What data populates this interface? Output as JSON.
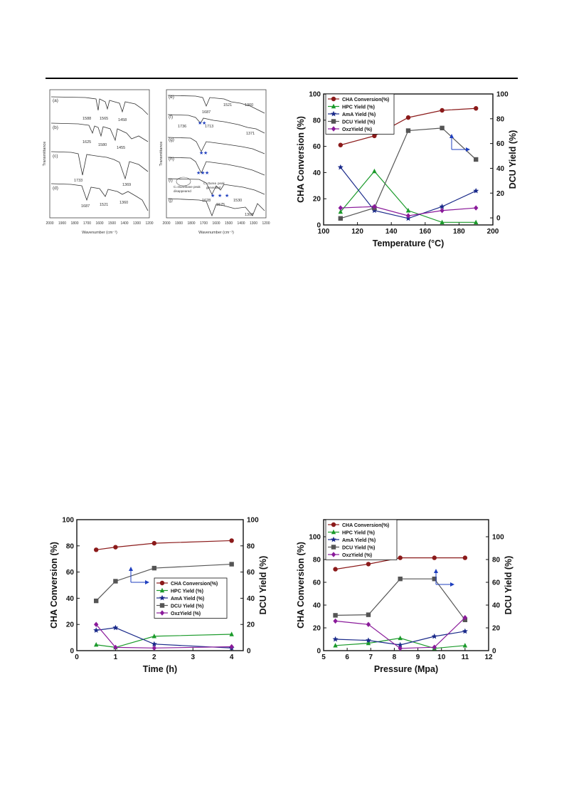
{
  "chart_data": [
    {
      "type": "line",
      "subtype": "ftir-spectra",
      "xlabel": "Wavenumber (cm⁻¹)",
      "ylabel": "Transmittance",
      "xlim": [
        2000,
        1200
      ],
      "xticks": [
        "2000",
        "1900",
        "1800",
        "1700",
        "1600",
        "1500",
        "1400",
        "1300",
        "1200"
      ],
      "spectra": [
        {
          "name": "(a)",
          "annotations": [
            "1588",
            "1565",
            "1458"
          ]
        },
        {
          "name": "(b)",
          "annotations": [
            "1625",
            "1580",
            "1455"
          ]
        },
        {
          "name": "(c)",
          "annotations": [
            "1733",
            "1369"
          ]
        },
        {
          "name": "(d)",
          "annotations": [
            "1687",
            "1521",
            "1360"
          ]
        }
      ]
    },
    {
      "type": "line",
      "subtype": "ftir-spectra",
      "xlabel": "Wavenumber (cm⁻¹)",
      "ylabel": "Transmittance",
      "xlim": [
        2000,
        1200
      ],
      "xticks": [
        "2000",
        "1900",
        "1800",
        "1700",
        "1600",
        "1500",
        "1400",
        "1300",
        "1200"
      ],
      "spectra": [
        {
          "name": "(e)",
          "annotations": [
            "1687",
            "1521",
            "1360"
          ]
        },
        {
          "name": "(f)",
          "annotations": [
            "1736",
            "1713",
            "1371"
          ]
        },
        {
          "name": "(g)",
          "annotations": []
        },
        {
          "name": "(h)",
          "annotations": []
        },
        {
          "name": "(i)",
          "annotations": [
            "1628",
            "1575",
            "1530"
          ]
        },
        {
          "name": "(j)",
          "annotations": [
            "1308"
          ]
        }
      ],
      "notes": [
        "C=O",
        "urethane peak",
        "disappeared",
        "C=O",
        "urea",
        "peak",
        "generated"
      ]
    },
    {
      "type": "line",
      "xlabel": "Temperature (°C)",
      "ylabel": "CHA Conversion (%)",
      "y2label": "DCU Yield (%)",
      "x": [
        110,
        130,
        150,
        170,
        190
      ],
      "xlim": [
        100,
        200
      ],
      "ylim": [
        0,
        100
      ],
      "y2lim": [
        -5.7,
        100
      ],
      "xticks": [
        100,
        120,
        140,
        160,
        180,
        200
      ],
      "yticks": [
        0,
        20,
        40,
        60,
        80,
        100
      ],
      "y2ticks": [
        0,
        20,
        40,
        60,
        80,
        100
      ],
      "legend_position": "top-left",
      "series": [
        {
          "name": "CHA Conversion(%)",
          "values": [
            61,
            68,
            82,
            87.5,
            89
          ],
          "color": "#8b1a1a",
          "marker": "circle"
        },
        {
          "name": "HPC Yield (%)",
          "values": [
            10,
            41,
            11,
            2,
            2
          ],
          "color": "#1a9a2a",
          "marker": "triangle"
        },
        {
          "name": "AmA Yield (%)",
          "values": [
            44,
            11,
            5,
            14,
            26
          ],
          "color": "#1a2a8a",
          "marker": "star"
        },
        {
          "name": "DCU Yield (%)",
          "values": [
            5,
            13,
            72,
            74,
            50
          ],
          "color": "#555555",
          "marker": "square"
        },
        {
          "name": "OxzYield (%)",
          "values": [
            13,
            14,
            7,
            11,
            13
          ],
          "color": "#8a1a9a",
          "marker": "diamond"
        }
      ]
    },
    {
      "type": "line",
      "xlabel": "Time (h)",
      "ylabel": "CHA Conversion (%)",
      "y2label": "DCU Yield (%)",
      "x": [
        0.5,
        1,
        2,
        4
      ],
      "xlim": [
        0,
        4.3
      ],
      "ylim": [
        0,
        100
      ],
      "y2lim": [
        0,
        100
      ],
      "xticks": [
        0,
        1,
        2,
        3,
        4
      ],
      "yticks": [
        0,
        20,
        40,
        60,
        80,
        100
      ],
      "y2ticks": [
        0,
        20,
        40,
        60,
        80,
        100
      ],
      "legend_position": "center-right",
      "series": [
        {
          "name": "CHA Conversion(%)",
          "values": [
            77,
            79,
            82,
            84
          ],
          "color": "#8b1a1a",
          "marker": "circle"
        },
        {
          "name": "HPC Yield (%)",
          "values": [
            4.5,
            2.5,
            11,
            12.5
          ],
          "color": "#1a9a2a",
          "marker": "triangle"
        },
        {
          "name": "AmA Yield (%)",
          "values": [
            15.5,
            17.5,
            5,
            2
          ],
          "color": "#1a2a8a",
          "marker": "star"
        },
        {
          "name": "DCU Yield (%)",
          "values": [
            38,
            53,
            63,
            66
          ],
          "color": "#555555",
          "marker": "square"
        },
        {
          "name": "OxzYield (%)",
          "values": [
            20,
            2.5,
            2,
            3
          ],
          "color": "#8a1a9a",
          "marker": "diamond"
        }
      ]
    },
    {
      "type": "line",
      "xlabel": "Pressure (Mpa)",
      "ylabel": "CHA Conversion (%)",
      "y2label": "DCU Yield (%)",
      "x": [
        5.5,
        6.9,
        8.25,
        9.7,
        11
      ],
      "xlim": [
        5,
        12
      ],
      "ylim": [
        0,
        115
      ],
      "y2lim": [
        0,
        115
      ],
      "xticks": [
        5,
        6,
        7,
        8,
        9,
        10,
        11,
        12
      ],
      "yticks": [
        0,
        20,
        40,
        60,
        80,
        100
      ],
      "y2ticks": [
        0,
        20,
        40,
        60,
        80,
        100
      ],
      "legend_position": "top-left",
      "series": [
        {
          "name": "CHA Conversion(%)",
          "values": [
            71.5,
            76,
            81.5,
            81.5,
            81.5
          ],
          "color": "#8b1a1a",
          "marker": "circle"
        },
        {
          "name": "HPC Yield (%)",
          "values": [
            4.5,
            6.5,
            11,
            2,
            4.5
          ],
          "color": "#1a9a2a",
          "marker": "triangle"
        },
        {
          "name": "AmA Yield (%)",
          "values": [
            10,
            9,
            5,
            12.5,
            17
          ],
          "color": "#1a2a8a",
          "marker": "star"
        },
        {
          "name": "DCU Yield (%)",
          "values": [
            31,
            31.5,
            63,
            63,
            27
          ],
          "color": "#555555",
          "marker": "square"
        },
        {
          "name": "OxzYield (%)",
          "values": [
            26,
            23,
            2,
            3,
            29
          ],
          "color": "#8a1a9a",
          "marker": "diamond"
        }
      ]
    }
  ]
}
